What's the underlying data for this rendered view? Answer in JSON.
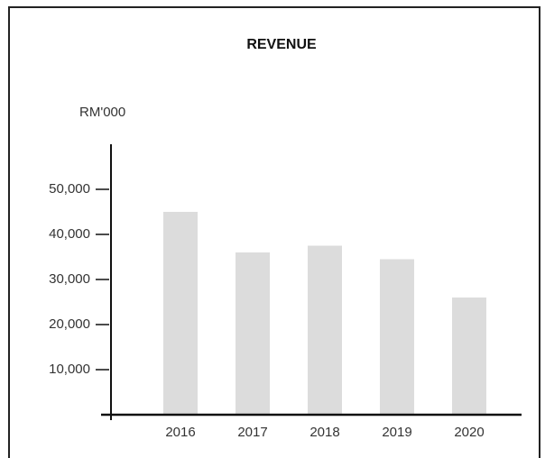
{
  "chart_data": {
    "type": "bar",
    "title": "REVENUE",
    "y_label": "RM'000",
    "categories": [
      "2016",
      "2017",
      "2018",
      "2019",
      "2020"
    ],
    "values": [
      45000,
      36000,
      37500,
      34500,
      26000
    ],
    "color": "#dcdcdc",
    "ylim": [
      0,
      60000
    ],
    "yticks": [
      {
        "value": 10000,
        "label": "10,000"
      },
      {
        "value": 20000,
        "label": "20,000"
      },
      {
        "value": 30000,
        "label": "30,000"
      },
      {
        "value": 40000,
        "label": "40,000"
      },
      {
        "value": 50000,
        "label": "50,000"
      }
    ],
    "grid": false
  }
}
